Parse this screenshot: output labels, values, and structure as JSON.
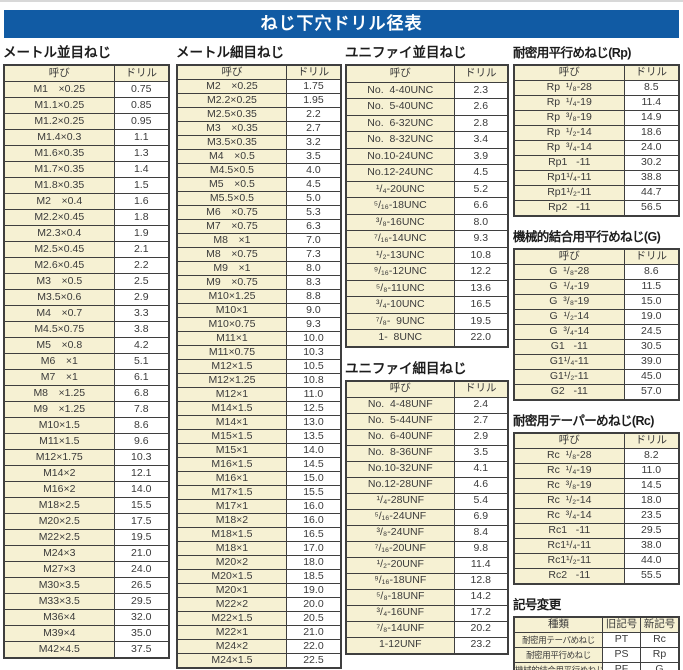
{
  "title_bar": {
    "text": "ねじ下穴ドリル径表"
  },
  "colors": {
    "title_bar_bg": "#115ba4",
    "cell_cream": "#f6f1d3",
    "table_border": "#3f3f3f",
    "text": "#3a3a3a"
  },
  "sections": {
    "metric_coarse": {
      "title": "メートル並目ねじ",
      "headers": [
        "呼び",
        "ドリル"
      ],
      "rows": [
        [
          "M1　×0.25",
          "0.75"
        ],
        [
          "M1.1×0.25",
          "0.85"
        ],
        [
          "M1.2×0.25",
          "0.95"
        ],
        [
          "M1.4×0.3",
          "1.1"
        ],
        [
          "M1.6×0.35",
          "1.3"
        ],
        [
          "M1.7×0.35",
          "1.4"
        ],
        [
          "M1.8×0.35",
          "1.5"
        ],
        [
          "M2　×0.4",
          "1.6"
        ],
        [
          "M2.2×0.45",
          "1.8"
        ],
        [
          "M2.3×0.4",
          "1.9"
        ],
        [
          "M2.5×0.45",
          "2.1"
        ],
        [
          "M2.6×0.45",
          "2.2"
        ],
        [
          "M3　×0.5",
          "2.5"
        ],
        [
          "M3.5×0.6",
          "2.9"
        ],
        [
          "M4　×0.7",
          "3.3"
        ],
        [
          "M4.5×0.75",
          "3.8"
        ],
        [
          "M5　×0.8",
          "4.2"
        ],
        [
          "M6　×1",
          "5.1"
        ],
        [
          "M7　×1",
          "6.1"
        ],
        [
          "M8　×1.25",
          "6.8"
        ],
        [
          "M9　×1.25",
          "7.8"
        ],
        [
          "M10×1.5",
          "8.6"
        ],
        [
          "M11×1.5",
          "9.6"
        ],
        [
          "M12×1.75",
          "10.3"
        ],
        [
          "M14×2",
          "12.1"
        ],
        [
          "M16×2",
          "14.0"
        ],
        [
          "M18×2.5",
          "15.5"
        ],
        [
          "M20×2.5",
          "17.5"
        ],
        [
          "M22×2.5",
          "19.5"
        ],
        [
          "M24×3",
          "21.0"
        ],
        [
          "M27×3",
          "24.0"
        ],
        [
          "M30×3.5",
          "26.5"
        ],
        [
          "M33×3.5",
          "29.5"
        ],
        [
          "M36×4",
          "32.0"
        ],
        [
          "M39×4",
          "35.0"
        ],
        [
          "M42×4.5",
          "37.5"
        ]
      ]
    },
    "metric_fine": {
      "title": "メートル細目ねじ",
      "headers": [
        "呼び",
        "ドリル"
      ],
      "rows": [
        [
          "M2　×0.25",
          "1.75"
        ],
        [
          "M2.2×0.25",
          "1.95"
        ],
        [
          "M2.5×0.35",
          "2.2"
        ],
        [
          "M3　×0.35",
          "2.7"
        ],
        [
          "M3.5×0.35",
          "3.2"
        ],
        [
          "M4　×0.5",
          "3.5"
        ],
        [
          "M4.5×0.5",
          "4.0"
        ],
        [
          "M5　×0.5",
          "4.5"
        ],
        [
          "M5.5×0.5",
          "5.0"
        ],
        [
          "M6　×0.75",
          "5.3"
        ],
        [
          "M7　×0.75",
          "6.3"
        ],
        [
          "M8　×1",
          "7.0"
        ],
        [
          "M8　×0.75",
          "7.3"
        ],
        [
          "M9　×1",
          "8.0"
        ],
        [
          "M9　×0.75",
          "8.3"
        ],
        [
          "M10×1.25",
          "8.8"
        ],
        [
          "M10×1",
          "9.0"
        ],
        [
          "M10×0.75",
          "9.3"
        ],
        [
          "M11×1",
          "10.0"
        ],
        [
          "M11×0.75",
          "10.3"
        ],
        [
          "M12×1.5",
          "10.5"
        ],
        [
          "M12×1.25",
          "10.8"
        ],
        [
          "M12×1",
          "11.0"
        ],
        [
          "M14×1.5",
          "12.5"
        ],
        [
          "M14×1",
          "13.0"
        ],
        [
          "M15×1.5",
          "13.5"
        ],
        [
          "M15×1",
          "14.0"
        ],
        [
          "M16×1.5",
          "14.5"
        ],
        [
          "M16×1",
          "15.0"
        ],
        [
          "M17×1.5",
          "15.5"
        ],
        [
          "M17×1",
          "16.0"
        ],
        [
          "M18×2",
          "16.0"
        ],
        [
          "M18×1.5",
          "16.5"
        ],
        [
          "M18×1",
          "17.0"
        ],
        [
          "M20×2",
          "18.0"
        ],
        [
          "M20×1.5",
          "18.5"
        ],
        [
          "M20×1",
          "19.0"
        ],
        [
          "M22×2",
          "20.0"
        ],
        [
          "M22×1.5",
          "20.5"
        ],
        [
          "M22×1",
          "21.0"
        ],
        [
          "M24×2",
          "22.0"
        ],
        [
          "M24×1.5",
          "22.5"
        ]
      ]
    },
    "unified_coarse": {
      "title": "ユニファイ並目ねじ",
      "headers": [
        "呼び",
        "ドリル"
      ],
      "rows": [
        [
          "No.  4-40UNC",
          "2.3"
        ],
        [
          "No.  5-40UNC",
          "2.6"
        ],
        [
          "No.  6-32UNC",
          "2.8"
        ],
        [
          "No.  8-32UNC",
          "3.4"
        ],
        [
          "No.10-24UNC",
          "3.9"
        ],
        [
          "No.12-24UNC",
          "4.5"
        ],
        [
          "¹/₄-20UNC",
          "5.2"
        ],
        [
          "⁵/₁₆-18UNC",
          "6.6"
        ],
        [
          "³/₈-16UNC",
          "8.0"
        ],
        [
          "⁷/₁₆-14UNC",
          "9.3"
        ],
        [
          "¹/₂-13UNC",
          "10.8"
        ],
        [
          "⁹/₁₆-12UNC",
          "12.2"
        ],
        [
          "⁵/₈-11UNC",
          "13.6"
        ],
        [
          "³/₄-10UNC",
          "16.5"
        ],
        [
          "⁷/₈-  9UNC",
          "19.5"
        ],
        [
          "1-  8UNC",
          "22.0"
        ]
      ]
    },
    "unified_fine": {
      "title": "ユニファイ細目ねじ",
      "headers": [
        "呼び",
        "ドリル"
      ],
      "rows": [
        [
          "No.  4-48UNF",
          "2.4"
        ],
        [
          "No.  5-44UNF",
          "2.7"
        ],
        [
          "No.  6-40UNF",
          "2.9"
        ],
        [
          "No.  8-36UNF",
          "3.5"
        ],
        [
          "No.10-32UNF",
          "4.1"
        ],
        [
          "No.12-28UNF",
          "4.6"
        ],
        [
          "¹/₄-28UNF",
          "5.4"
        ],
        [
          "⁵/₁₆-24UNF",
          "6.9"
        ],
        [
          "³/₈-24UNF",
          "8.4"
        ],
        [
          "⁷/₁₆-20UNF",
          "9.8"
        ],
        [
          "¹/₂-20UNF",
          "11.4"
        ],
        [
          "⁹/₁₆-18UNF",
          "12.8"
        ],
        [
          "⁵/₈-18UNF",
          "14.2"
        ],
        [
          "³/₄-16UNF",
          "17.2"
        ],
        [
          "⁷/₈-14UNF",
          "20.2"
        ],
        [
          "1-12UNF",
          "23.2"
        ]
      ]
    },
    "rp": {
      "title": "耐密用平行めねじ(Rp)",
      "headers": [
        "呼び",
        "ドリル"
      ],
      "rows": [
        [
          "Rp  ¹/₈-28",
          "8.5"
        ],
        [
          "Rp  ¹/₄-19",
          "11.4"
        ],
        [
          "Rp  ³/₈-19",
          "14.9"
        ],
        [
          "Rp  ¹/₂-14",
          "18.6"
        ],
        [
          "Rp  ³/₄-14",
          "24.0"
        ],
        [
          "Rp1   -11",
          "30.2"
        ],
        [
          "Rp1¹/₄-11",
          "38.8"
        ],
        [
          "Rp1¹/₂-11",
          "44.7"
        ],
        [
          "Rp2   -11",
          "56.5"
        ]
      ]
    },
    "g": {
      "title": "機械的結合用平行めねじ(G)",
      "headers": [
        "呼び",
        "ドリル"
      ],
      "rows": [
        [
          "G  ¹/₈-28",
          "8.6"
        ],
        [
          "G  ¹/₄-19",
          "11.5"
        ],
        [
          "G  ³/₈-19",
          "15.0"
        ],
        [
          "G  ¹/₂-14",
          "19.0"
        ],
        [
          "G  ³/₄-14",
          "24.5"
        ],
        [
          "G1   -11",
          "30.5"
        ],
        [
          "G1¹/₄-11",
          "39.0"
        ],
        [
          "G1¹/₂-11",
          "45.0"
        ],
        [
          "G2   -11",
          "57.0"
        ]
      ]
    },
    "rc": {
      "title": "耐密用テーパーめねじ(Rc)",
      "headers": [
        "呼び",
        "ドリル"
      ],
      "rows": [
        [
          "Rc  ¹/₈-28",
          "8.2"
        ],
        [
          "Rc  ¹/₄-19",
          "11.0"
        ],
        [
          "Rc  ³/₈-19",
          "14.5"
        ],
        [
          "Rc  ¹/₂-14",
          "18.0"
        ],
        [
          "Rc  ³/₄-14",
          "23.5"
        ],
        [
          "Rc1   -11",
          "29.5"
        ],
        [
          "Rc1¹/₄-11",
          "38.0"
        ],
        [
          "Rc1¹/₂-11",
          "44.0"
        ],
        [
          "Rc2   -11",
          "55.5"
        ]
      ]
    },
    "symbol_change": {
      "title": "記号変更",
      "headers": [
        "種類",
        "旧記号",
        "新記号"
      ],
      "rows": [
        [
          "耐密用テーパめねじ",
          "PT",
          "Rc"
        ],
        [
          "耐密用平行めねじ",
          "PS",
          "Rp"
        ],
        [
          "機械的結合用平行めねじ",
          "PF",
          "G"
        ]
      ]
    }
  }
}
